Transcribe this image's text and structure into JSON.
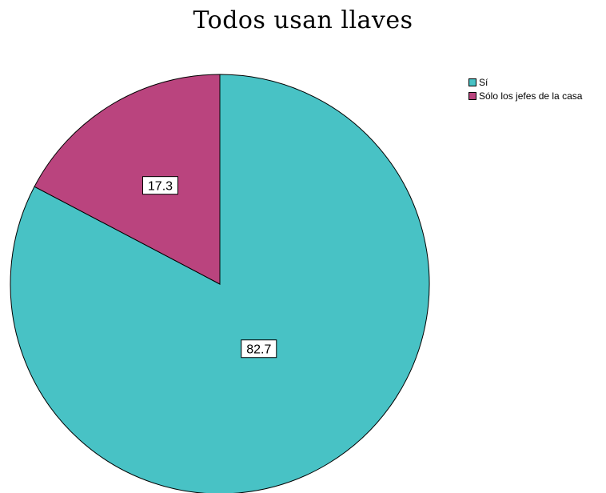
{
  "chart_data": {
    "type": "pie",
    "title": "Todos usan llaves",
    "slices": [
      {
        "label": "Sí",
        "value": 82.7,
        "color": "#48C2C5"
      },
      {
        "label": "Sólo los jefes de la casa",
        "value": 17.3,
        "color": "#BA447E"
      }
    ],
    "legend_placement": "top-right",
    "start_angle": "12 o'clock",
    "direction": "clockwise"
  }
}
